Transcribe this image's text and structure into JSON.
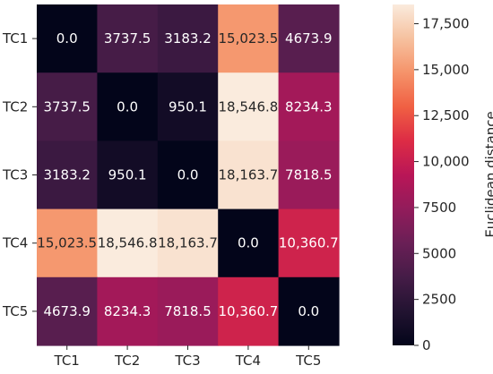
{
  "chart_data": {
    "type": "heatmap",
    "x_categories": [
      "TC1",
      "TC2",
      "TC3",
      "TC4",
      "TC5"
    ],
    "y_categories": [
      "TC1",
      "TC2",
      "TC3",
      "TC4",
      "TC5"
    ],
    "values": [
      [
        0.0,
        3737.5,
        3183.2,
        15023.5,
        4673.9
      ],
      [
        3737.5,
        0.0,
        950.1,
        18546.8,
        8234.3
      ],
      [
        3183.2,
        950.1,
        0.0,
        18163.7,
        7818.5
      ],
      [
        15023.5,
        18546.8,
        18163.7,
        0.0,
        10360.7
      ],
      [
        4673.9,
        8234.3,
        7818.5,
        10360.7,
        0.0
      ]
    ],
    "value_labels": [
      [
        "0.0",
        "3737.5",
        "3183.2",
        "15,023.5",
        "4673.9"
      ],
      [
        "3737.5",
        "0.0",
        "950.1",
        "18,546.8",
        "8234.3"
      ],
      [
        "3183.2",
        "950.1",
        "0.0",
        "18,163.7",
        "7818.5"
      ],
      [
        "15,023.5",
        "18,546.8",
        "18,163.7",
        "0.0",
        "10,360.7"
      ],
      [
        "4673.9",
        "8234.3",
        "7818.5",
        "10,360.7",
        "0.0"
      ]
    ],
    "colormap": "rocket",
    "color_range": [
      0,
      18546.8
    ],
    "colorbar": {
      "label": "Euclidean distance",
      "ticks": [
        0,
        2500,
        5000,
        7500,
        10000,
        12500,
        15000,
        17500
      ],
      "tick_labels": [
        "0",
        "2500",
        "5000",
        "7500",
        "10,000",
        "12,500",
        "15,000",
        "17,500"
      ]
    },
    "title": "",
    "xlabel": "",
    "ylabel": ""
  }
}
